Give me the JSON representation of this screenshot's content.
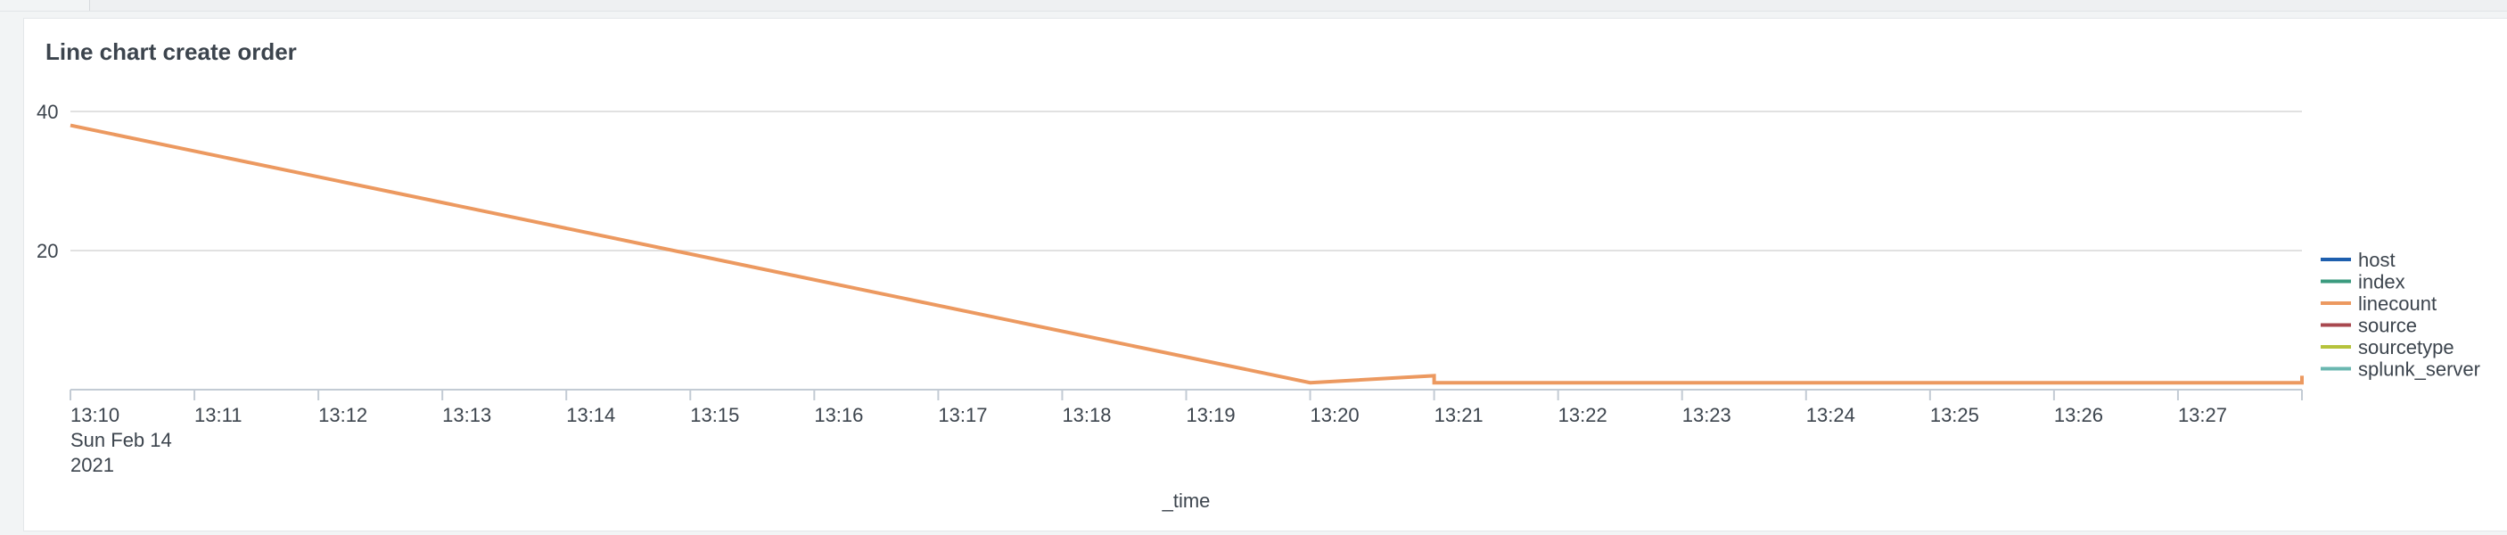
{
  "panel": {
    "title": "Line chart create order"
  },
  "colors": {
    "gridline": "#e1e1e1",
    "axis": "#c3cbd4",
    "text": "#3c444d"
  },
  "chart_data": {
    "type": "line",
    "title": "Line chart create order",
    "xlabel": "_time",
    "ylabel": "",
    "x_tick_labels": [
      "13:10",
      "13:11",
      "13:12",
      "13:13",
      "13:14",
      "13:15",
      "13:16",
      "13:17",
      "13:18",
      "13:19",
      "13:20",
      "13:21",
      "13:22",
      "13:23",
      "13:24",
      "13:25",
      "13:26",
      "13:27"
    ],
    "x_first_tick_sublabels": [
      "Sun Feb 14",
      "2021"
    ],
    "x_range": [
      "13:10",
      "13:28"
    ],
    "y_ticks": [
      20,
      40
    ],
    "ylim": [
      0,
      40
    ],
    "grid": true,
    "legend_position": "right",
    "series": [
      {
        "name": "host",
        "color": "#1e5fae",
        "points": []
      },
      {
        "name": "index",
        "color": "#3a9a7e",
        "points": []
      },
      {
        "name": "linecount",
        "color": "#ec9960",
        "points": [
          {
            "x": "13:10",
            "y": 38
          },
          {
            "x": "13:20",
            "y": 1
          },
          {
            "x": "13:21",
            "y": 2
          },
          {
            "x": "13:21",
            "y": 1
          },
          {
            "x": "13:28",
            "y": 1
          },
          {
            "x": "13:28",
            "y": 2
          }
        ]
      },
      {
        "name": "source",
        "color": "#a8484f",
        "points": []
      },
      {
        "name": "sourcetype",
        "color": "#b6c33c",
        "points": []
      },
      {
        "name": "splunk_server",
        "color": "#6ab7b0",
        "points": []
      }
    ]
  }
}
